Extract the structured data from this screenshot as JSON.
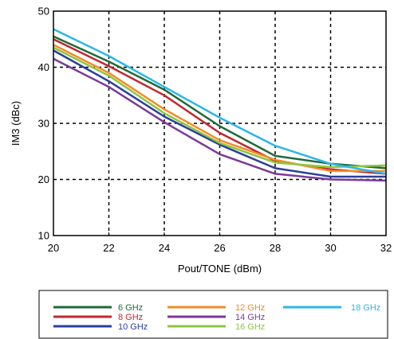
{
  "chart_data": {
    "type": "line",
    "xlabel": "Pout/TONE (dBm)",
    "ylabel": "IM3 (dBc)",
    "xlim": [
      20,
      32
    ],
    "ylim": [
      10,
      50
    ],
    "xticks": [
      20,
      22,
      24,
      26,
      28,
      30,
      32
    ],
    "yticks": [
      10,
      20,
      30,
      40,
      50
    ],
    "grid": "dashed",
    "legend_position": "below",
    "x": [
      20,
      22,
      24,
      26,
      28,
      30,
      32
    ],
    "series": [
      {
        "name": "6 GHz",
        "color": "#1f6b3a",
        "values": [
          45.5,
          41.0,
          36.0,
          29.5,
          24.2,
          22.8,
          22.0
        ]
      },
      {
        "name": "8 GHz",
        "color": "#c0282e",
        "values": [
          45.0,
          40.2,
          35.0,
          28.3,
          23.3,
          21.8,
          21.0
        ]
      },
      {
        "name": "10 GHz",
        "color": "#2a3f9a",
        "values": [
          43.0,
          37.5,
          31.2,
          26.2,
          22.0,
          20.5,
          20.5
        ]
      },
      {
        "name": "12 GHz",
        "color": "#f28c28",
        "values": [
          44.0,
          39.0,
          32.5,
          27.0,
          23.5,
          21.5,
          21.5
        ]
      },
      {
        "name": "14 GHz",
        "color": "#7b3a96",
        "values": [
          41.5,
          36.5,
          30.2,
          24.5,
          21.0,
          20.0,
          19.8
        ]
      },
      {
        "name": "16 GHz",
        "color": "#8dc63f",
        "values": [
          43.5,
          38.5,
          31.8,
          26.5,
          23.0,
          22.2,
          22.5
        ]
      },
      {
        "name": "18 GHz",
        "color": "#2cb6e8",
        "values": [
          46.8,
          42.0,
          36.5,
          31.0,
          26.0,
          22.8,
          21.0
        ]
      }
    ]
  }
}
